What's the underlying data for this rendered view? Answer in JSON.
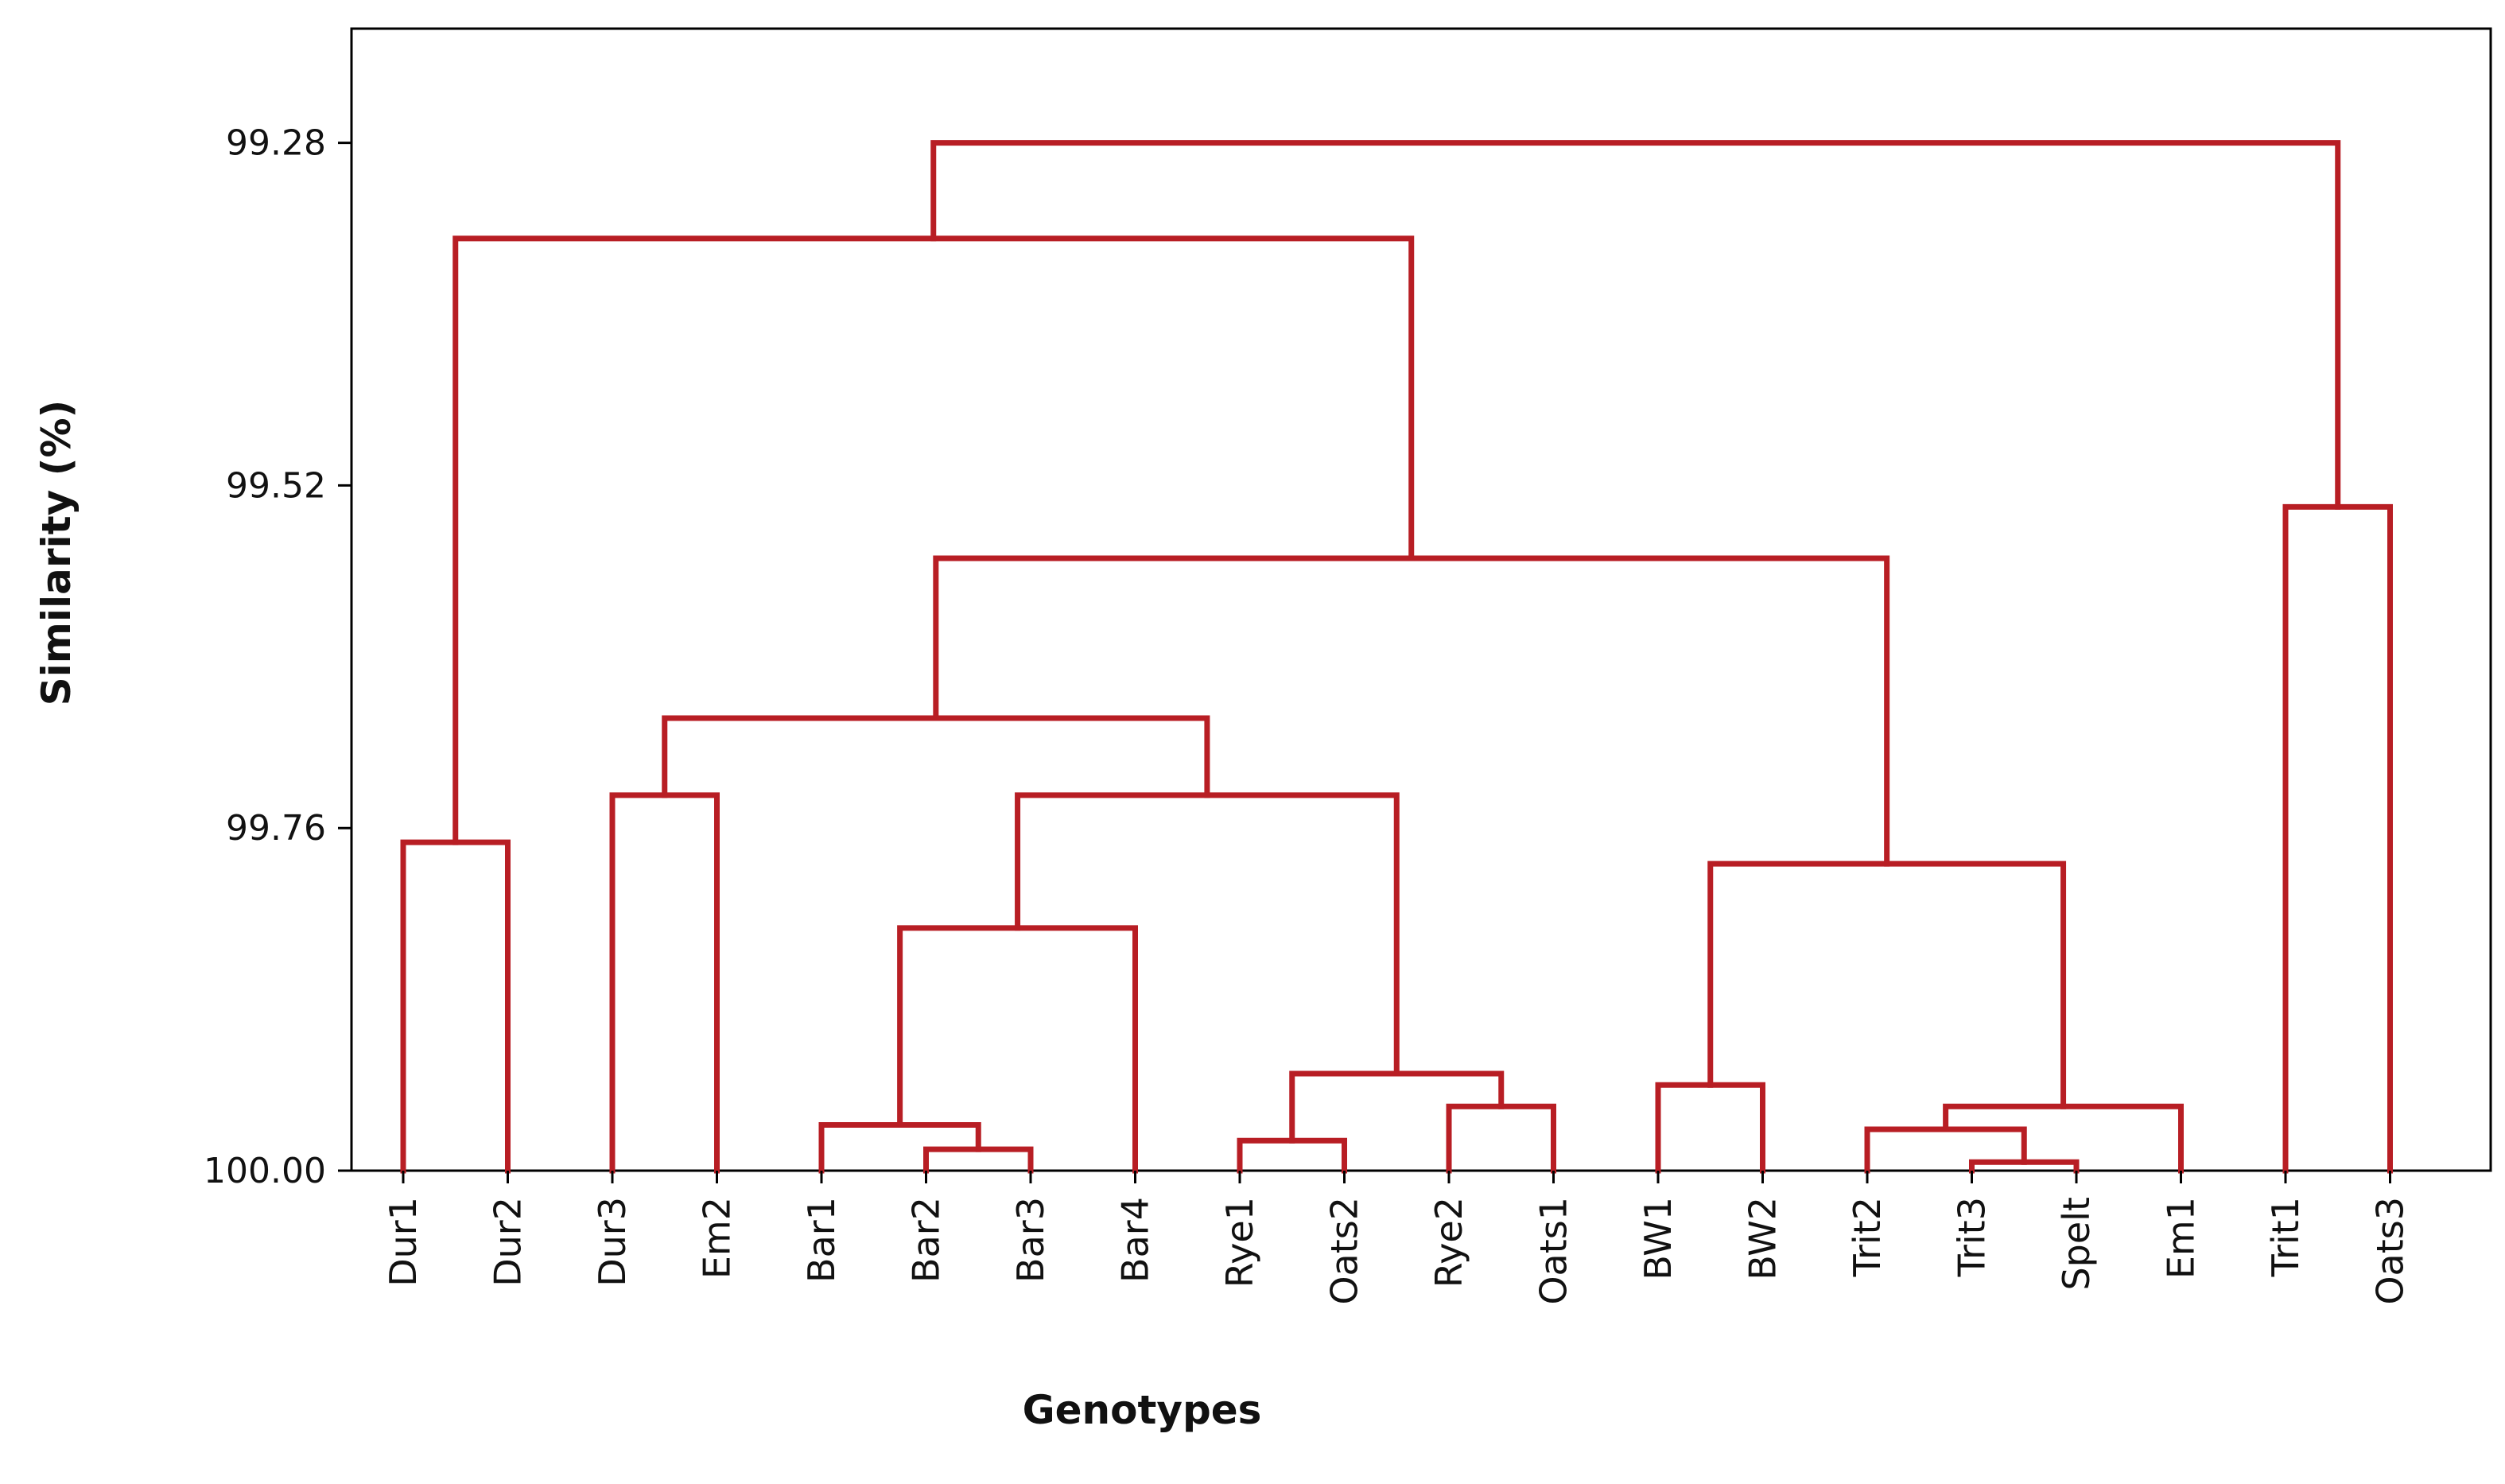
{
  "chart_data": {
    "type": "dendrogram",
    "xlabel": "Genotypes",
    "ylabel": "Similarity (%)",
    "ylim": [
      99.2,
      100.0
    ],
    "yticks": [
      "99.28",
      "99.52",
      "99.76",
      "100.00"
    ],
    "leaves": [
      "Dur1",
      "Dur2",
      "Dur3",
      "Em2",
      "Bar1",
      "Bar2",
      "Bar3",
      "Bar4",
      "Rye1",
      "Oats2",
      "Rye2",
      "Oats1",
      "BW1",
      "BW2",
      "Trit2",
      "Trit3",
      "Spelt",
      "Em1",
      "Trit1",
      "Oats3"
    ],
    "merges": [
      {
        "name": "m-bar3-spelt-sub",
        "left": "Bar3",
        "right": "Bar2",
        "height": 99.985
      },
      {
        "name": "m-trit3-spelt",
        "left": "Trit3",
        "right": "Spelt",
        "height": 99.994
      },
      {
        "name": "m-rye1-oats2",
        "left": "Rye1",
        "right": "Oats2",
        "height": 99.979
      },
      {
        "name": "m-bar1-bar23",
        "left": "Bar1",
        "right": "m-bar3-spelt-sub",
        "height": 99.968
      },
      {
        "name": "m-rye2-oats1",
        "left": "Rye2",
        "right": "Oats1",
        "height": 99.955
      },
      {
        "name": "m-trit2-trit3",
        "left": "Trit2",
        "right": "m-trit3-spelt",
        "height": 99.971
      },
      {
        "name": "m-tritgroup-em1",
        "left": "m-trit2-trit3",
        "right": "Em1",
        "height": 99.955
      },
      {
        "name": "m-bw1-bw2",
        "left": "BW1",
        "right": "BW2",
        "height": 99.94
      },
      {
        "name": "m-rye-oats",
        "left": "m-rye1-oats2",
        "right": "m-rye2-oats1",
        "height": 99.932
      },
      {
        "name": "m-bar-group",
        "left": "m-bar1-bar23",
        "right": "Bar4",
        "height": 99.83
      },
      {
        "name": "m-dur1-dur2",
        "left": "Dur1",
        "right": "Dur2",
        "height": 99.77
      },
      {
        "name": "m-dur3-em2",
        "left": "Dur3",
        "right": "Em2",
        "height": 99.737
      },
      {
        "name": "m-bw-trit",
        "left": "m-bw1-bw2",
        "right": "m-tritgroup-em1",
        "height": 99.785
      },
      {
        "name": "m-bar-ryeoats",
        "left": "m-bar-group",
        "right": "m-rye-oats",
        "height": 99.737
      },
      {
        "name": "m-dur3em2-bar",
        "left": "m-dur3-em2",
        "right": "m-bar-ryeoats",
        "height": 99.683
      },
      {
        "name": "m-big-cluster",
        "left": "m-dur3em2-bar",
        "right": "m-bw-trit",
        "height": 99.571
      },
      {
        "name": "m-trit1-oats3",
        "left": "Trit1",
        "right": "Oats3",
        "height": 99.535
      },
      {
        "name": "m-dur-big",
        "left": "m-dur1-dur2",
        "right": "m-big-cluster",
        "height": 99.347
      },
      {
        "name": "m-root",
        "left": "m-dur-big",
        "right": "m-trit1-oats3",
        "height": 99.28
      }
    ],
    "line_color": "#b81e24",
    "grid": false,
    "legend": "none"
  }
}
